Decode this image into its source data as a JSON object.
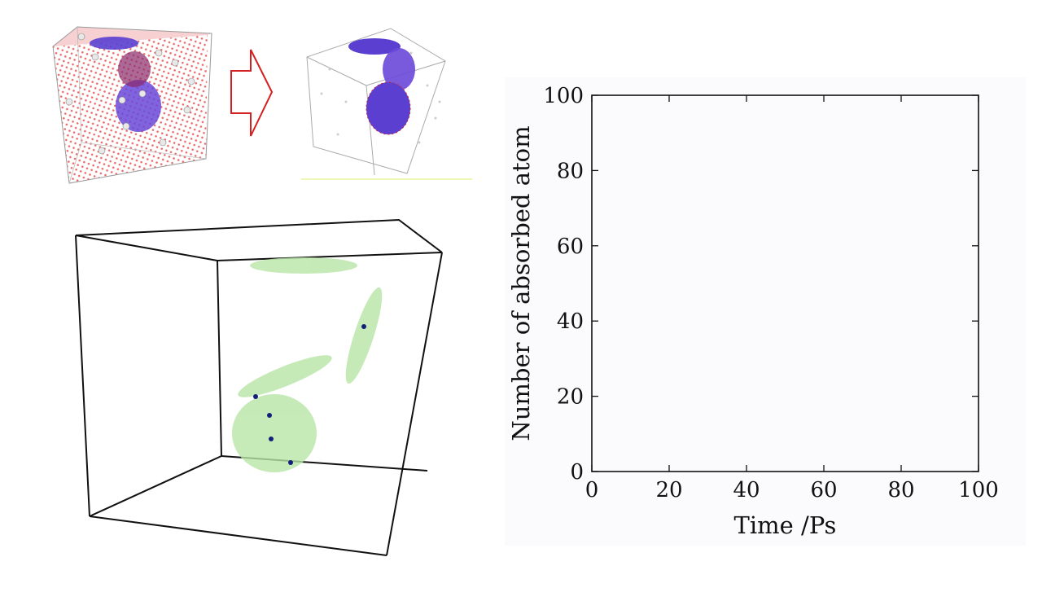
{
  "figure": {
    "accent": "#d42020",
    "cavity_color": "#b8e6a6",
    "solute_color": "#12207a"
  },
  "chart_data": {
    "type": "line",
    "xlabel": "Time /Ps",
    "ylabel": "Number of absorbed atom",
    "xlim": [
      0,
      100
    ],
    "ylim": [
      0,
      100
    ],
    "xticks": [
      0,
      20,
      40,
      60,
      80,
      100
    ],
    "yticks": [
      0,
      20,
      40,
      60,
      80,
      100
    ],
    "series": [],
    "grid": false
  }
}
